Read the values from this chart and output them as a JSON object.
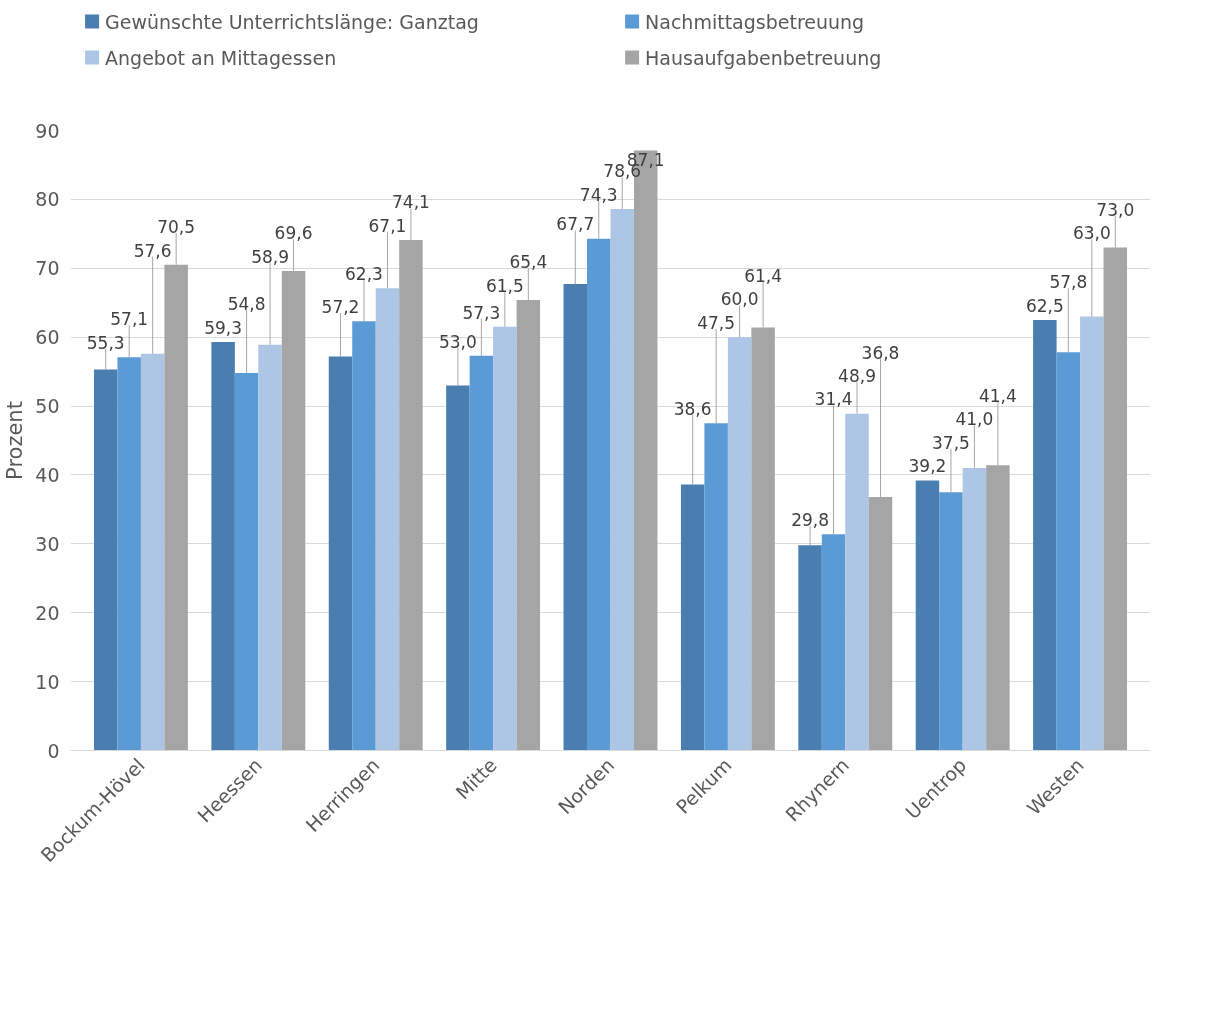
{
  "chart_data": {
    "type": "bar",
    "ylabel": "Prozent",
    "categories": [
      "Bockum-Hövel",
      "Heessen",
      "Herringen",
      "Mitte",
      "Norden",
      "Pelkum",
      "Rhynern",
      "Uentrop",
      "Westen"
    ],
    "series": [
      {
        "name": "Gewünschte Unterrichtslänge: Ganztag",
        "color": "#4a7eb0",
        "values": [
          55.3,
          59.3,
          57.2,
          53.0,
          67.7,
          38.6,
          29.8,
          39.2,
          62.5
        ],
        "value_labels": [
          "55,3",
          "59,3",
          "57,2",
          "53,0",
          "67,7",
          "38,6",
          "29,8",
          "39,2",
          "62,5"
        ]
      },
      {
        "name": "Nachmittagsbetreuung",
        "color": "#5b9bd5",
        "values": [
          57.1,
          54.8,
          62.3,
          57.3,
          74.3,
          47.5,
          31.4,
          37.5,
          57.8
        ],
        "value_labels": [
          "57,1",
          "54,8",
          "62,3",
          "57,3",
          "74,3",
          "47,5",
          "31,4",
          "37,5",
          "57,8"
        ]
      },
      {
        "name": "Angebot an Mittagessen",
        "color": "#adc6e6",
        "values": [
          57.6,
          58.9,
          67.1,
          61.5,
          78.6,
          60.0,
          48.9,
          41.0,
          63.0
        ],
        "value_labels": [
          "57,6",
          "58,9",
          "67,1",
          "61,5",
          "78,6",
          "60,0",
          "48,9",
          "41,0",
          "63,0"
        ]
      },
      {
        "name": "Hausaufgabenbetreuung",
        "color": "#a5a5a5",
        "values": [
          70.5,
          69.6,
          74.1,
          65.4,
          87.1,
          61.4,
          36.8,
          41.4,
          73.0
        ],
        "value_labels": [
          "70,5",
          "69,6",
          "74,1",
          "65,4",
          "87,1",
          "61,4",
          "36,8",
          "41,4",
          "73,0"
        ]
      }
    ],
    "ylim": [
      0,
      90
    ],
    "yticks": [
      0,
      10,
      20,
      30,
      40,
      50,
      60,
      70,
      80,
      90
    ],
    "grid": "y",
    "legend": "top"
  }
}
